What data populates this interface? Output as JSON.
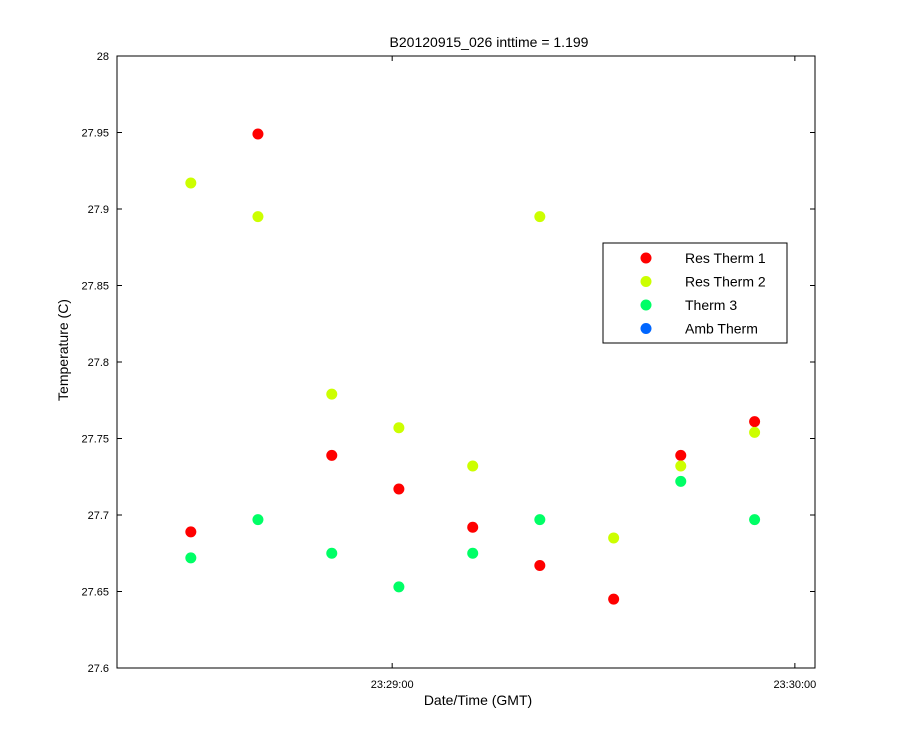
{
  "chart_data": {
    "type": "scatter",
    "title": "B20120915_026 inttime = 1.199",
    "xlabel": "Date/Time (GMT)",
    "ylabel": "Temperature (C)",
    "xlim": [
      "23:28:19",
      "23:30:03"
    ],
    "ylim": [
      27.6,
      28
    ],
    "yticks": [
      27.6,
      27.65,
      27.7,
      27.75,
      27.8,
      27.85,
      27.9,
      27.95,
      28
    ],
    "xticks": [
      "23:29:00",
      "23:30:00"
    ],
    "grid": false,
    "legend_position": "right",
    "series": [
      {
        "name": "Res Therm 1",
        "color": "#ff0000",
        "points": [
          {
            "x": "23:28:30",
            "y": 27.689
          },
          {
            "x": "23:28:40",
            "y": 27.949
          },
          {
            "x": "23:28:51",
            "y": 27.739
          },
          {
            "x": "23:29:01",
            "y": 27.717
          },
          {
            "x": "23:29:12",
            "y": 27.692
          },
          {
            "x": "23:29:22",
            "y": 27.667
          },
          {
            "x": "23:29:33",
            "y": 27.645
          },
          {
            "x": "23:29:43",
            "y": 27.739
          },
          {
            "x": "23:29:54",
            "y": 27.761
          }
        ]
      },
      {
        "name": "Res Therm 2",
        "color": "#ccff00",
        "points": [
          {
            "x": "23:28:30",
            "y": 27.917
          },
          {
            "x": "23:28:40",
            "y": 27.895
          },
          {
            "x": "23:28:51",
            "y": 27.779
          },
          {
            "x": "23:29:01",
            "y": 27.757
          },
          {
            "x": "23:29:12",
            "y": 27.732
          },
          {
            "x": "23:29:22",
            "y": 27.895
          },
          {
            "x": "23:29:33",
            "y": 27.685
          },
          {
            "x": "23:29:43",
            "y": 27.732
          },
          {
            "x": "23:29:54",
            "y": 27.754
          }
        ]
      },
      {
        "name": "Therm 3",
        "color": "#00ff66",
        "points": [
          {
            "x": "23:28:30",
            "y": 27.672
          },
          {
            "x": "23:28:40",
            "y": 27.697
          },
          {
            "x": "23:28:51",
            "y": 27.675
          },
          {
            "x": "23:29:01",
            "y": 27.653
          },
          {
            "x": "23:29:12",
            "y": 27.675
          },
          {
            "x": "23:29:22",
            "y": 27.697
          },
          {
            "x": "23:29:43",
            "y": 27.722
          },
          {
            "x": "23:29:54",
            "y": 27.697
          }
        ]
      },
      {
        "name": "Amb Therm",
        "color": "#0066ff",
        "points": []
      }
    ]
  }
}
